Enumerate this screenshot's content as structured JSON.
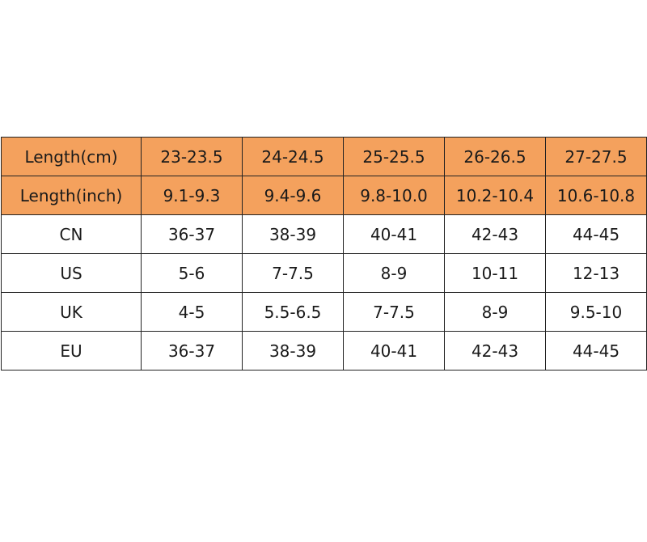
{
  "table": {
    "colors": {
      "header_background": "#f4a15d",
      "body_background": "#ffffff",
      "border": "#222222"
    },
    "rows": [
      {
        "label": "Length(cm)",
        "values": [
          "23-23.5",
          "24-24.5",
          "25-25.5",
          "26-26.5",
          "27-27.5"
        ],
        "highlight": true
      },
      {
        "label": "Length(inch)",
        "values": [
          "9.1-9.3",
          "9.4-9.6",
          "9.8-10.0",
          "10.2-10.4",
          "10.6-10.8"
        ],
        "highlight": true
      },
      {
        "label": "CN",
        "values": [
          "36-37",
          "38-39",
          "40-41",
          "42-43",
          "44-45"
        ],
        "highlight": false
      },
      {
        "label": "US",
        "values": [
          "5-6",
          "7-7.5",
          "8-9",
          "10-11",
          "12-13"
        ],
        "highlight": false
      },
      {
        "label": "UK",
        "values": [
          "4-5",
          "5.5-6.5",
          "7-7.5",
          "8-9",
          "9.5-10"
        ],
        "highlight": false
      },
      {
        "label": "EU",
        "values": [
          "36-37",
          "38-39",
          "40-41",
          "42-43",
          "44-45"
        ],
        "highlight": false
      }
    ]
  }
}
